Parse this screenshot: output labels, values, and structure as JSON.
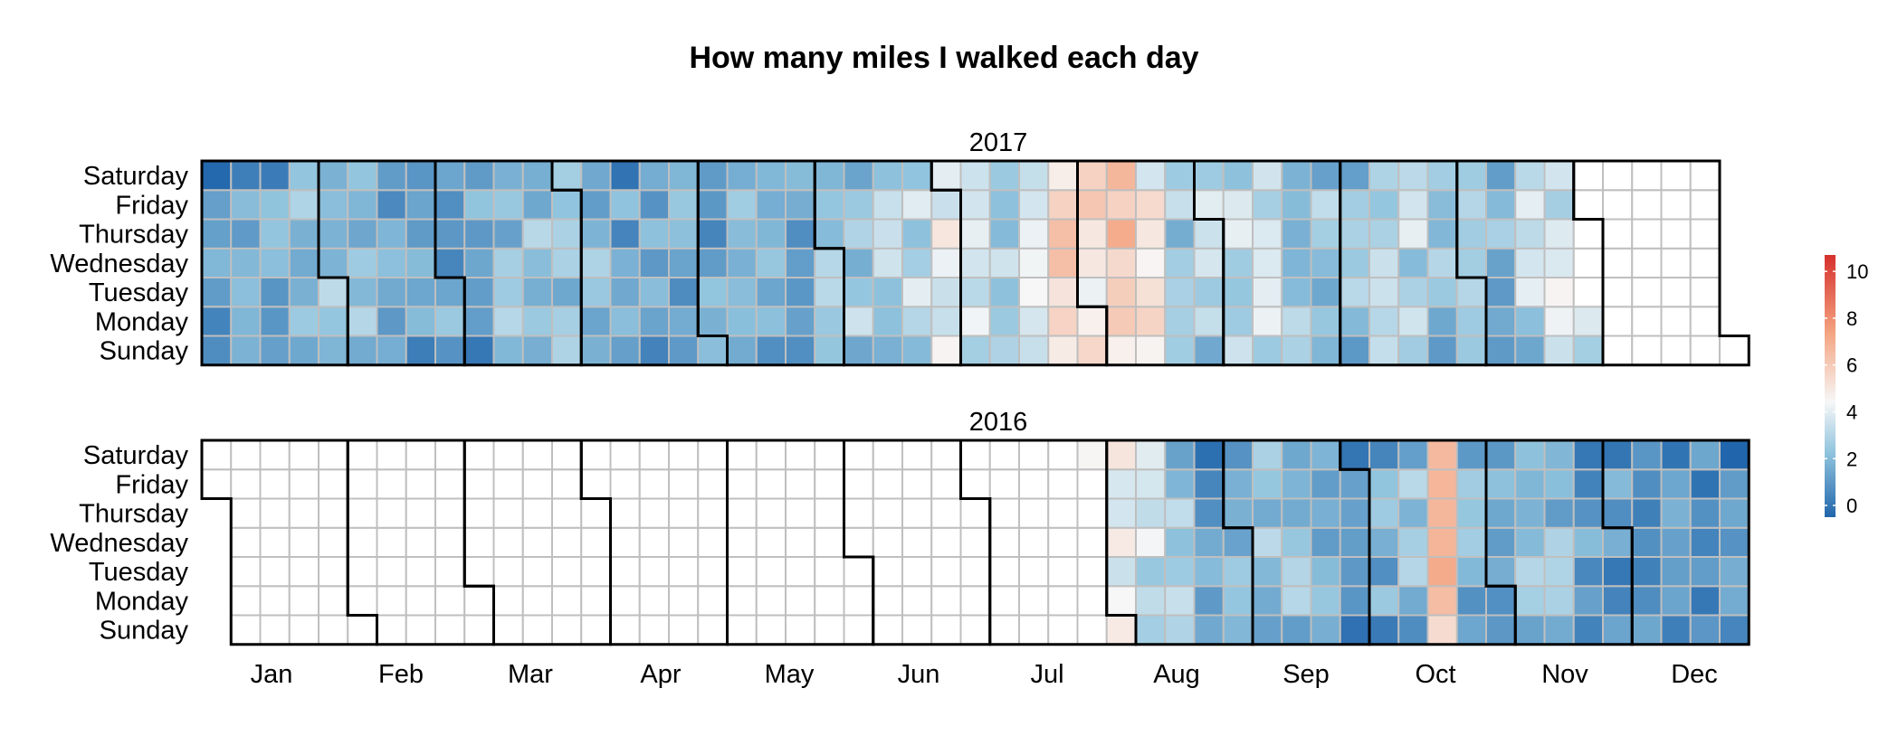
{
  "chart_data": {
    "type": "heatmap",
    "title": "How many miles I walked each day",
    "panels": [
      {
        "name": "2017",
        "year": 2017,
        "data_range": [
          "2017-01-01",
          "2017-11-27"
        ],
        "weekly_avg_miles": [
          0.8,
          1.4,
          1.5,
          2.0,
          2.5,
          2.0,
          1.4,
          1.6,
          1.5,
          1.6,
          2.3,
          2.1,
          2.5,
          1.8,
          1.3,
          1.4,
          1.7,
          1.5,
          1.7,
          2.0,
          1.5,
          2.4,
          2.7,
          3.0,
          3.1,
          4.0,
          3.6,
          3.0,
          4.0,
          5.5,
          5.2,
          6.2,
          4.6,
          2.5,
          3.0,
          3.2,
          3.4,
          2.6,
          2.4,
          2.5,
          3.2,
          3.0,
          2.1,
          2.6,
          2.0,
          3.0,
          3.5
        ]
      },
      {
        "name": "2016",
        "year": 2016,
        "data_range": [
          "2016-07-30",
          "2016-12-31"
        ],
        "weekly_avg_miles": [
          5.0,
          4.5,
          3.4,
          2.8,
          1.2,
          2.2,
          2.4,
          2.6,
          1.7,
          1.4,
          1.6,
          2.1,
          6.8,
          1.8,
          1.5,
          2.0,
          1.9,
          1.3,
          1.1,
          0.9,
          0.8,
          0.9
        ]
      }
    ],
    "rows": [
      "Saturday",
      "Friday",
      "Thursday",
      "Wednesday",
      "Tuesday",
      "Monday",
      "Sunday"
    ],
    "months": [
      "Jan",
      "Feb",
      "Mar",
      "Apr",
      "May",
      "Jun",
      "Jul",
      "Aug",
      "Sep",
      "Oct",
      "Nov",
      "Dec"
    ],
    "legend": {
      "min": -0.5,
      "max": 10.7,
      "ticks": [
        "0",
        "2",
        "4",
        "6",
        "8",
        "10"
      ],
      "tick_values": [
        0,
        2,
        4,
        6,
        8,
        10
      ]
    },
    "colors": {
      "low": "#2166ac",
      "mid": "#f7f7f7",
      "high": "#d6312d",
      "empty": "#ffffff",
      "grid": "#bfbfbf"
    }
  }
}
